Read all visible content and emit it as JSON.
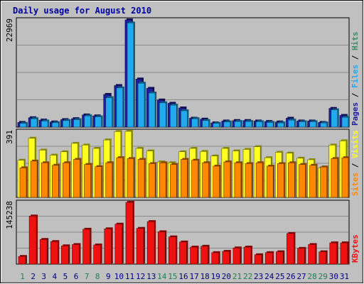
{
  "colors": {
    "background": "#c0c0c0",
    "panel": "#c0c0c0",
    "title": "#0000a0",
    "pages": "#1e1ea0",
    "files": "#22aaee",
    "hits": "#3c8c64",
    "visits": "#ffff22",
    "sites": "#ff8800",
    "kbytes": "#ee1111",
    "weekend_day": "#208050",
    "weekday": "#000080",
    "max_label": "#000000"
  },
  "chart_data": {
    "type": "bar",
    "title": "Daily usage for August 2010",
    "categories": [
      "1",
      "2",
      "3",
      "4",
      "5",
      "6",
      "7",
      "8",
      "9",
      "10",
      "11",
      "12",
      "13",
      "14",
      "15",
      "16",
      "17",
      "18",
      "19",
      "20",
      "21",
      "22",
      "23",
      "24",
      "25",
      "26",
      "27",
      "28",
      "29",
      "30",
      "31"
    ],
    "weekend_days": [
      "1",
      "7",
      "8",
      "14",
      "15",
      "21",
      "22",
      "28",
      "29"
    ],
    "panels": [
      {
        "name": "hits",
        "max_label": "22969",
        "ylim": [
          0,
          22969
        ],
        "side_labels": [
          "Hits",
          "Files",
          "Pages"
        ],
        "series": [
          {
            "name": "Pages",
            "values": [
              1000,
              2000,
              1500,
              1100,
              1600,
              1800,
              2600,
              2400,
              7000,
              8900,
              22969,
              10300,
              8300,
              5800,
              5100,
              4100,
              1900,
              1700,
              900,
              1300,
              1400,
              1400,
              1300,
              1200,
              1100,
              1900,
              1300,
              1300,
              1000,
              4000,
              2500
            ]
          },
          {
            "name": "Files",
            "values": [
              800,
              1800,
              1300,
              950,
              1400,
              1600,
              2400,
              2200,
              6300,
              8400,
              22300,
              9400,
              7300,
              5200,
              4700,
              3500,
              1800,
              1400,
              800,
              1100,
              1200,
              1200,
              1150,
              1000,
              900,
              1500,
              1150,
              1150,
              900,
              3700,
              2100
            ]
          }
        ]
      },
      {
        "name": "visits",
        "max_label": "391",
        "ylim": [
          0,
          391
        ],
        "side_labels": [
          "Visits",
          "Sites"
        ],
        "series": [
          {
            "name": "Visits",
            "values": [
              220,
              350,
              280,
              250,
              270,
              320,
              310,
              290,
              340,
              390,
              391,
              290,
              275,
              210,
              205,
              270,
              290,
              272,
              245,
              290,
              275,
              284,
              300,
              235,
              267,
              262,
              232,
              223,
              175,
              310,
              335
            ]
          },
          {
            "name": "Sites",
            "values": [
              175,
              215,
              205,
              190,
              205,
              225,
              195,
              182,
              205,
              235,
              230,
              225,
              200,
              205,
              195,
              225,
              220,
              205,
              185,
              210,
              205,
              200,
              205,
              185,
              200,
              205,
              195,
              190,
              180,
              230,
              235
            ]
          }
        ]
      },
      {
        "name": "kbytes",
        "max_label": "145238",
        "ylim": [
          0,
          145238
        ],
        "side_labels": [
          "KBytes"
        ],
        "series": [
          {
            "name": "KBytes",
            "values": [
              18000,
              113000,
              58000,
              53000,
              43000,
              46000,
              82000,
              45000,
              83000,
              94000,
              145238,
              84000,
              100000,
              76000,
              64000,
              52000,
              40000,
              42000,
              27000,
              30000,
              38000,
              40000,
              22000,
              27000,
              29000,
              72000,
              37000,
              46000,
              29000,
              50000,
              50000
            ]
          }
        ]
      }
    ]
  }
}
